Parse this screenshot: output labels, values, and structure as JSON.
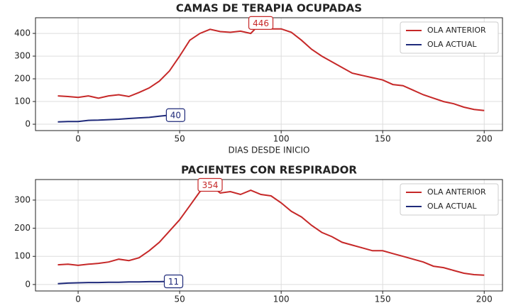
{
  "chart_data": [
    {
      "type": "line",
      "title": "CAMAS DE TERAPIA OCUPADAS",
      "xlabel": "DIAS DESDE INICIO",
      "xlim": [
        -21,
        209
      ],
      "ylim": [
        -28,
        469
      ],
      "xticks": [
        0,
        50,
        100,
        150,
        200
      ],
      "yticks": [
        0,
        100,
        200,
        300,
        400
      ],
      "grid": true,
      "legend": "upper right",
      "series": [
        {
          "name": "OLA ANTERIOR",
          "color": "#c62828",
          "x": [
            -10,
            -5,
            0,
            5,
            10,
            15,
            20,
            25,
            30,
            35,
            40,
            45,
            50,
            55,
            60,
            65,
            70,
            75,
            80,
            85,
            90,
            95,
            100,
            105,
            110,
            115,
            120,
            125,
            130,
            135,
            140,
            145,
            150,
            155,
            160,
            165,
            170,
            175,
            180,
            185,
            190,
            195,
            200
          ],
          "values": [
            125,
            122,
            118,
            125,
            115,
            125,
            130,
            122,
            140,
            160,
            190,
            235,
            300,
            370,
            400,
            418,
            408,
            405,
            410,
            400,
            446,
            420,
            420,
            405,
            370,
            330,
            300,
            275,
            250,
            225,
            215,
            205,
            195,
            175,
            170,
            150,
            130,
            115,
            100,
            90,
            75,
            65,
            60
          ]
        },
        {
          "name": "OLA ACTUAL",
          "color": "#1f2a7a",
          "x": [
            -10,
            -5,
            0,
            5,
            10,
            15,
            20,
            25,
            30,
            35,
            40,
            45
          ],
          "values": [
            10,
            12,
            12,
            17,
            18,
            20,
            22,
            25,
            28,
            30,
            35,
            40
          ]
        }
      ],
      "annotations": [
        {
          "text": "446",
          "x": 90,
          "y": 446,
          "color": "#c62828"
        },
        {
          "text": "40",
          "x": 48,
          "y": 40,
          "color": "#1f2a7a"
        }
      ]
    },
    {
      "type": "line",
      "title": "PACIENTES CON RESPIRADOR",
      "xlim": [
        -21,
        209
      ],
      "ylim": [
        -23,
        373
      ],
      "xticks": [
        0,
        50,
        100,
        150,
        200
      ],
      "yticks": [
        0,
        100,
        200,
        300
      ],
      "grid": true,
      "legend": "upper right",
      "series": [
        {
          "name": "OLA ANTERIOR",
          "color": "#c62828",
          "x": [
            -10,
            -5,
            0,
            5,
            10,
            15,
            20,
            25,
            30,
            35,
            40,
            45,
            50,
            55,
            60,
            65,
            70,
            75,
            80,
            85,
            90,
            95,
            100,
            105,
            110,
            115,
            120,
            125,
            130,
            135,
            140,
            145,
            150,
            155,
            160,
            165,
            170,
            175,
            180,
            185,
            190,
            195,
            200
          ],
          "values": [
            70,
            72,
            68,
            72,
            75,
            80,
            90,
            85,
            95,
            120,
            150,
            190,
            230,
            280,
            330,
            354,
            325,
            330,
            320,
            335,
            320,
            315,
            290,
            260,
            240,
            210,
            185,
            170,
            150,
            140,
            130,
            120,
            120,
            110,
            100,
            90,
            80,
            65,
            60,
            50,
            40,
            35,
            33
          ]
        },
        {
          "name": "OLA ACTUAL",
          "color": "#1f2a7a",
          "x": [
            -10,
            -5,
            0,
            5,
            10,
            15,
            20,
            25,
            30,
            35,
            40,
            45
          ],
          "values": [
            3,
            5,
            6,
            7,
            7,
            8,
            8,
            9,
            9,
            10,
            10,
            11
          ]
        }
      ],
      "annotations": [
        {
          "text": "354",
          "x": 65,
          "y": 354,
          "color": "#c62828"
        },
        {
          "text": "11",
          "x": 47,
          "y": 11,
          "color": "#1f2a7a"
        }
      ]
    }
  ]
}
